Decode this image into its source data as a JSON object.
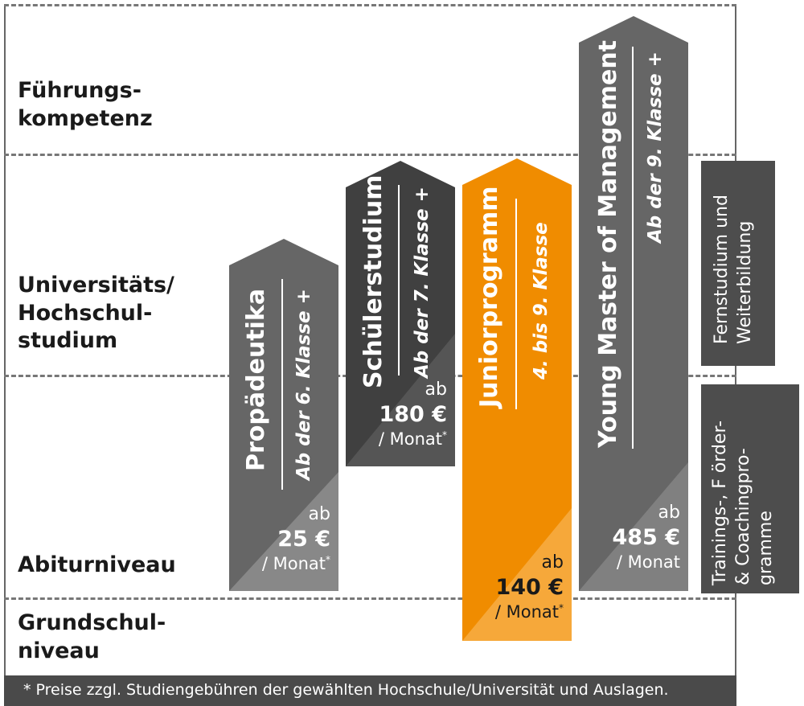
{
  "levels": {
    "fuehrung": "Führungs-\nkompetenz",
    "uni": "Universitäts/\nHochschul-\nstudium",
    "abitur": "Abiturniveau",
    "grundschule": "Grundschul-\nniveau"
  },
  "programs": [
    {
      "title": "Propädeutika",
      "subtitle": "Ab der 6. Klasse +",
      "price_prefix": "ab",
      "price": "25 €",
      "price_unit": "/ Monat",
      "footnote_mark": "*",
      "color": "#666666",
      "corner_color": "#888888"
    },
    {
      "title": "Schülerstudium",
      "subtitle": "Ab der 7. Klasse +",
      "price_prefix": "ab",
      "price": "180 €",
      "price_unit": "/ Monat",
      "footnote_mark": "*",
      "color": "#404040",
      "corner_color": "#555555"
    },
    {
      "title": "Juniorprogramm",
      "subtitle": "4. bis 9. Klasse",
      "price_prefix": "ab",
      "price": "140 €",
      "price_unit": "/ Monat",
      "footnote_mark": "*",
      "color": "#f08c00",
      "corner_color": "#f6a83a",
      "price_text_color": "#1a1a1a"
    },
    {
      "title": "Young Master  of Management",
      "subtitle": "Ab der 9. Klasse +",
      "price_prefix": "ab",
      "price": "485 €",
      "price_unit": "/ Monat",
      "footnote_mark": "",
      "color": "#666666",
      "corner_color": "#808080"
    }
  ],
  "side_boxes": {
    "fernstudium": "Fernstudium und\nWeiterbildung",
    "trainings": "Trainings-, F örder-\n& Coachingpro-\ngramme"
  },
  "footer": "* Preise zzgl. Studiengebühren der gewählten Hochschule/Universität und Auslagen."
}
